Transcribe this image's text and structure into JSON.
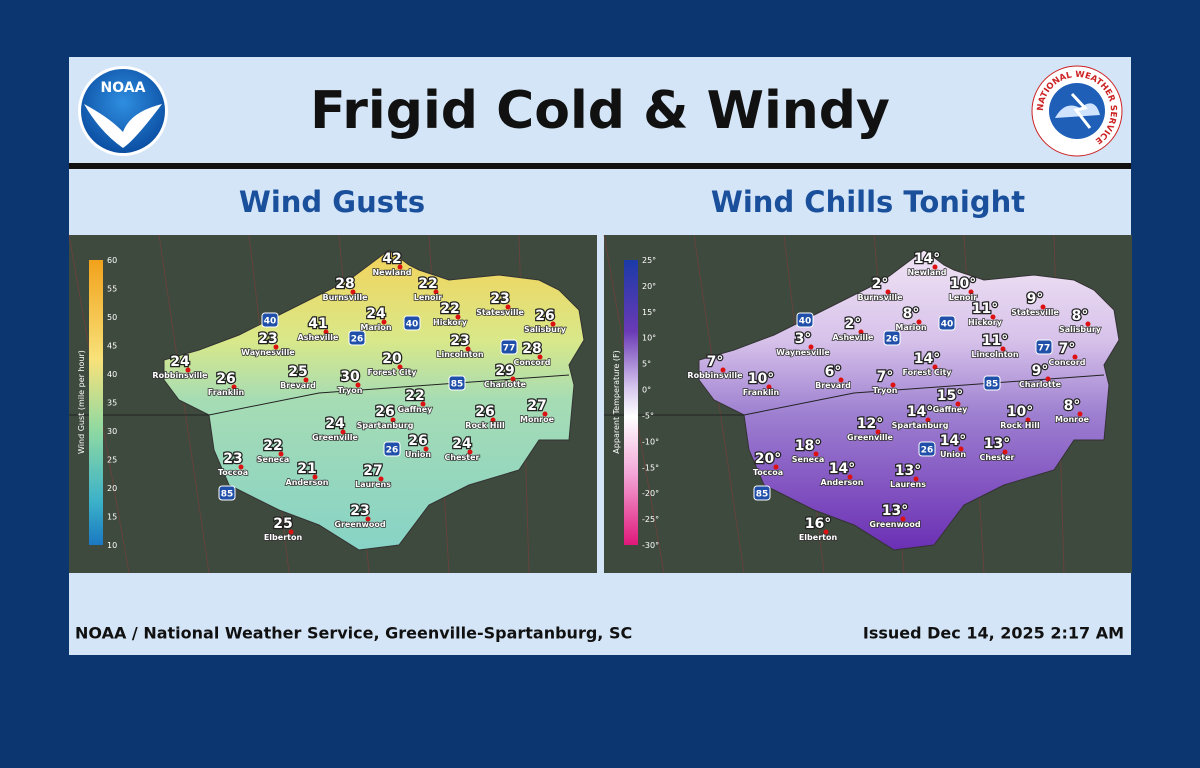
{
  "header": {
    "title": "Frigid Cold & Windy",
    "logo_left": "NOAA",
    "logo_right": "NATIONAL WEATHER SERVICE"
  },
  "cities": [
    "Newland",
    "Burnsville",
    "Lenoir",
    "Hickory",
    "Statesville",
    "Salisbury",
    "Asheville",
    "Marion",
    "Waynesville",
    "Robbinsville",
    "Franklin",
    "Brevard",
    "Tryon",
    "Forest City",
    "Lincolnton",
    "Concord",
    "Charlotte",
    "Gaffney",
    "Spartanburg",
    "Greenville",
    "Rock Hill",
    "Monroe",
    "Seneca",
    "Union",
    "Chester",
    "Toccoa",
    "Anderson",
    "Laurens",
    "Greenwood",
    "Elberton"
  ],
  "interstates": [
    "40",
    "26",
    "85",
    "77"
  ],
  "panels": [
    {
      "title": "Wind Gusts",
      "legend": {
        "label": "Wind Gust (mile per hour)",
        "ticks": [
          60,
          55,
          50,
          45,
          40,
          35,
          30,
          25,
          20,
          15,
          10
        ]
      },
      "values": [
        "42",
        "28",
        "22",
        "22",
        "23",
        "26",
        "41",
        "24",
        "23",
        "24",
        "26",
        "25",
        "30",
        "20",
        "23",
        "28",
        "29",
        "22",
        "26",
        "24",
        "26",
        "27",
        "22",
        "26",
        "24",
        "23",
        "21",
        "27",
        "23",
        "25"
      ]
    },
    {
      "title": "Wind Chills Tonight",
      "legend": {
        "label": "Apparent Temperature (F)",
        "ticks": [
          "25°",
          "20°",
          "15°",
          "10°",
          "5°",
          "0°",
          "-5°",
          "-10°",
          "-15°",
          "-20°",
          "-25°",
          "-30°"
        ]
      },
      "values": [
        "14°",
        "2°",
        "10°",
        "11°",
        "9°",
        "8°",
        "2°",
        "8°",
        "3°",
        "7°",
        "10°",
        "6°",
        "7°",
        "14°",
        "11°",
        "7°",
        "9°",
        "15°",
        "14°",
        "12°",
        "10°",
        "8°",
        "18°",
        "14°",
        "13°",
        "20°",
        "14°",
        "13°",
        "13°",
        "16°"
      ]
    }
  ],
  "footer": {
    "credit": "NOAA / National Weather Service, Greenville-Spartanburg, SC",
    "issued": "Issued Dec 14, 2025 2:17 AM"
  }
}
